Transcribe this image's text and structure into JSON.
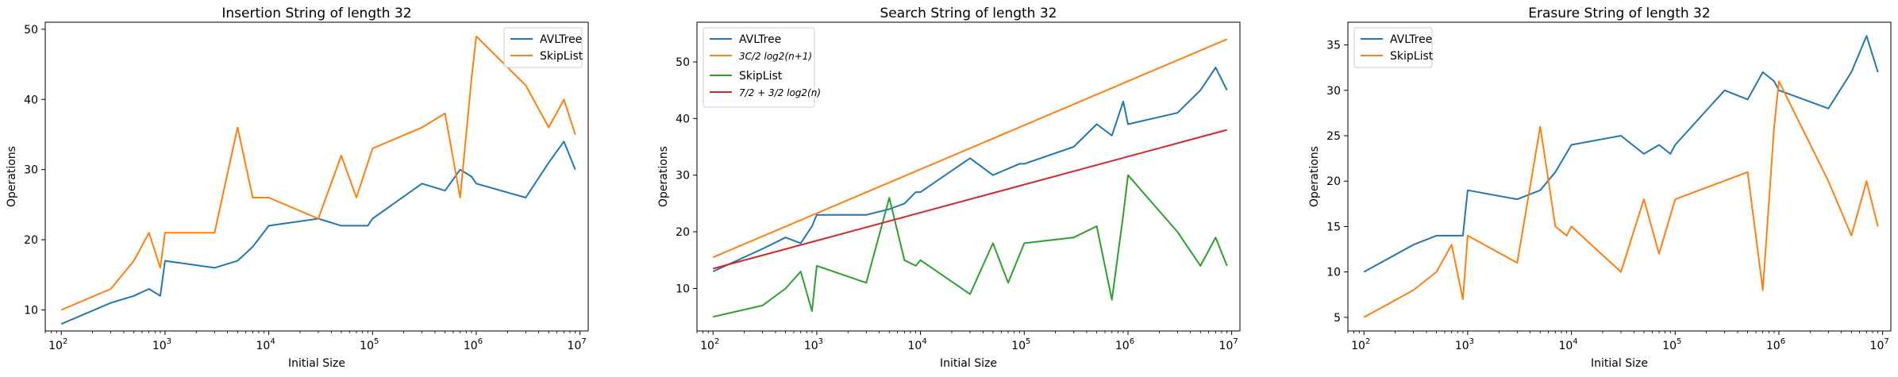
{
  "chart_data": [
    {
      "type": "line",
      "title": "Insertion String of length 32",
      "xlabel": "Initial Size",
      "ylabel": "Operations",
      "xscale": "log",
      "xlim": [
        70,
        12000000
      ],
      "ylim": [
        7,
        51
      ],
      "xticks": [
        {
          "v": 100,
          "m": "2"
        },
        {
          "v": 1000,
          "m": "3"
        },
        {
          "v": 10000,
          "m": "4"
        },
        {
          "v": 100000,
          "m": "5"
        },
        {
          "v": 1000000,
          "m": "6"
        },
        {
          "v": 10000000,
          "m": "7"
        }
      ],
      "yticks": [
        10,
        20,
        30,
        40,
        50
      ],
      "legend": "top-right",
      "series": [
        {
          "name": "AVLTree",
          "color": "#1f77b4",
          "x": [
            100,
            300,
            500,
            700,
            900,
            1000,
            3000,
            5000,
            7000,
            10000,
            30000,
            50000,
            90000,
            100000,
            300000,
            500000,
            700000,
            900000,
            1000000,
            3000000,
            5000000,
            7000000,
            9000000
          ],
          "y": [
            8,
            11,
            12,
            13,
            12,
            17,
            16,
            17,
            19,
            22,
            23,
            22,
            22,
            23,
            28,
            27,
            30,
            29,
            28,
            26,
            31,
            34,
            30
          ]
        },
        {
          "name": "SkipList",
          "color": "#ff7f0e",
          "x": [
            100,
            300,
            500,
            700,
            900,
            1000,
            3000,
            5000,
            7000,
            10000,
            30000,
            50000,
            70000,
            100000,
            300000,
            500000,
            700000,
            900000,
            1000000,
            3000000,
            5000000,
            7000000,
            9000000
          ],
          "y": [
            10,
            13,
            17,
            21,
            16,
            21,
            21,
            36,
            26,
            26,
            23,
            32,
            26,
            33,
            36,
            38,
            26,
            43,
            49,
            42,
            36,
            40,
            35
          ]
        }
      ]
    },
    {
      "type": "line",
      "title": "Search String of length 32",
      "xlabel": "Initial Size",
      "ylabel": "Operations",
      "xscale": "log",
      "xlim": [
        70,
        12000000
      ],
      "ylim": [
        2.5,
        57
      ],
      "xticks": [
        {
          "v": 100,
          "m": "2"
        },
        {
          "v": 1000,
          "m": "3"
        },
        {
          "v": 10000,
          "m": "4"
        },
        {
          "v": 100000,
          "m": "5"
        },
        {
          "v": 1000000,
          "m": "6"
        },
        {
          "v": 10000000,
          "m": "7"
        }
      ],
      "yticks": [
        10,
        20,
        30,
        40,
        50
      ],
      "legend": "top-left",
      "series": [
        {
          "name": "AVLTree",
          "color": "#1f77b4",
          "x": [
            100,
            300,
            500,
            700,
            900,
            1000,
            3000,
            5000,
            7000,
            9000,
            10000,
            30000,
            50000,
            90000,
            100000,
            300000,
            500000,
            700000,
            900000,
            1000000,
            3000000,
            5000000,
            7000000,
            9000000
          ],
          "y": [
            13,
            17,
            19,
            18,
            21,
            23,
            23,
            24,
            25,
            27,
            27,
            33,
            30,
            32,
            32,
            35,
            39,
            37,
            43,
            39,
            41,
            45,
            49,
            45
          ]
        },
        {
          "name": "3C/2 log2(n+1)",
          "color": "#ff7f0e",
          "x": [
            100,
            9000000
          ],
          "y": [
            15.5,
            54
          ]
        },
        {
          "name": "SkipList",
          "color": "#2ca02c",
          "x": [
            100,
            300,
            500,
            700,
            900,
            1000,
            3000,
            5000,
            7000,
            9000,
            10000,
            30000,
            50000,
            70000,
            100000,
            300000,
            500000,
            700000,
            900000,
            1000000,
            3000000,
            5000000,
            7000000,
            9000000
          ],
          "y": [
            5,
            7,
            10,
            13,
            6,
            14,
            11,
            26,
            15,
            14,
            15,
            9,
            18,
            11,
            18,
            19,
            21,
            8,
            23,
            30,
            20,
            14,
            19,
            14
          ]
        },
        {
          "name": "7/2 + 3/2 log2(n)",
          "color": "#d62728",
          "x": [
            100,
            9000000
          ],
          "y": [
            13.5,
            38
          ]
        }
      ]
    },
    {
      "type": "line",
      "title": "Erasure String of length 32",
      "xlabel": "Initial Size",
      "ylabel": "Operations",
      "xscale": "log",
      "xlim": [
        70,
        12000000
      ],
      "ylim": [
        3.5,
        37.5
      ],
      "xticks": [
        {
          "v": 100,
          "m": "2"
        },
        {
          "v": 1000,
          "m": "3"
        },
        {
          "v": 10000,
          "m": "4"
        },
        {
          "v": 100000,
          "m": "5"
        },
        {
          "v": 1000000,
          "m": "6"
        },
        {
          "v": 10000000,
          "m": "7"
        }
      ],
      "yticks": [
        5,
        10,
        15,
        20,
        25,
        30,
        35
      ],
      "legend": "top-left",
      "series": [
        {
          "name": "AVLTree",
          "color": "#1f77b4",
          "x": [
            100,
            300,
            500,
            700,
            900,
            1000,
            3000,
            5000,
            7000,
            10000,
            30000,
            50000,
            70000,
            90000,
            100000,
            300000,
            500000,
            700000,
            900000,
            1000000,
            3000000,
            5000000,
            7000000,
            9000000
          ],
          "y": [
            10,
            13,
            14,
            14,
            14,
            19,
            18,
            19,
            21,
            24,
            25,
            23,
            24,
            23,
            24,
            30,
            29,
            32,
            31,
            30,
            28,
            32,
            36,
            32
          ]
        },
        {
          "name": "SkipList",
          "color": "#ff7f0e",
          "x": [
            100,
            300,
            500,
            700,
            900,
            1000,
            3000,
            5000,
            7000,
            9000,
            10000,
            30000,
            50000,
            70000,
            100000,
            500000,
            700000,
            900000,
            1000000,
            3000000,
            5000000,
            7000000,
            9000000
          ],
          "y": [
            5,
            8,
            10,
            13,
            7,
            14,
            11,
            26,
            15,
            14,
            15,
            10,
            18,
            12,
            18,
            21,
            8,
            26,
            31,
            20,
            14,
            20,
            15
          ]
        }
      ]
    }
  ]
}
